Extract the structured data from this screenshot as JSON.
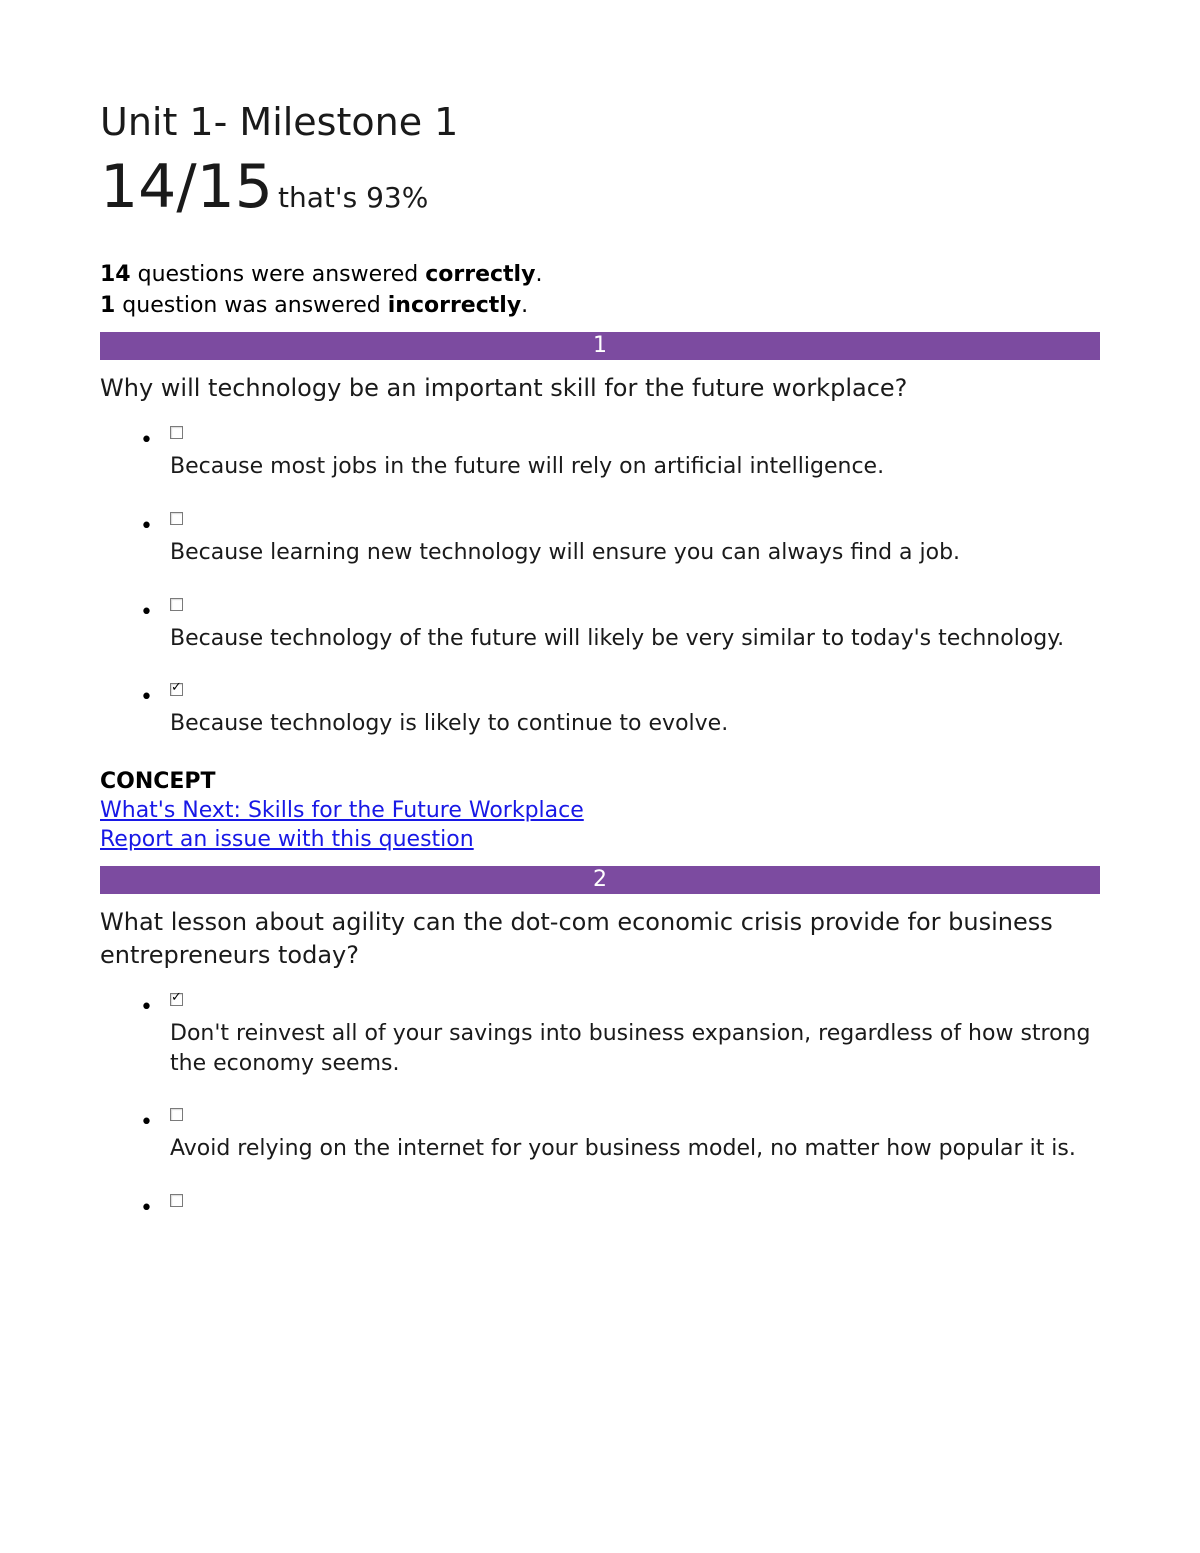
{
  "title": "Unit 1- Milestone 1",
  "score": {
    "fraction": "14/15",
    "percent_text": "that's 93%"
  },
  "summary": {
    "correct_count": "14",
    "correct_text": " questions were answered ",
    "correct_word": "correctly",
    "incorrect_count": "1",
    "incorrect_text": " question was answered ",
    "incorrect_word": "incorrectly"
  },
  "colors": {
    "bar_bg": "#7c4ba0",
    "bar_fg": "#ffffff",
    "link": "#1818e6"
  },
  "questions": [
    {
      "number": "1",
      "text": "Why will technology be an important skill for the future workplace?",
      "answers": [
        {
          "checked": false,
          "text": "Because most jobs in the future will rely on artificial intelligence."
        },
        {
          "checked": false,
          "text": "Because learning new technology will ensure you can always find a job."
        },
        {
          "checked": false,
          "text": "Because technology of the future will likely be very similar to today's technology."
        },
        {
          "checked": true,
          "text": "Because technology is likely to continue to evolve."
        }
      ],
      "concept_label": "CONCEPT",
      "concept_link": " What's Next: Skills for the Future Workplace",
      "report_link": "Report an issue with this question"
    },
    {
      "number": "2",
      "text": "What lesson about agility can the dot-com economic crisis provide for business entrepreneurs today?",
      "answers": [
        {
          "checked": true,
          "text": "Don't reinvest all of your savings into business expansion, regardless of how strong the economy seems."
        },
        {
          "checked": false,
          "text": "Avoid relying on the internet for your business model, no matter how popular it is."
        },
        {
          "checked": false,
          "text": ""
        }
      ]
    }
  ]
}
